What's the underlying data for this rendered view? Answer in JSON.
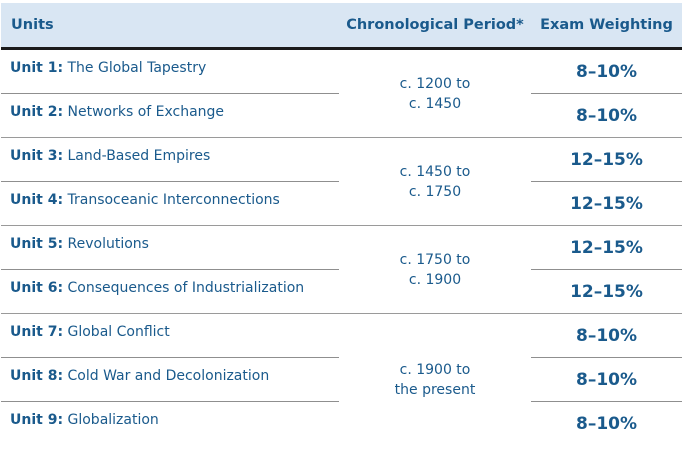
{
  "headers": {
    "units": "Units",
    "period": "Chronological Period*",
    "weighting": "Exam Weighting"
  },
  "rows": [
    {
      "num": "Unit 1:",
      "title": "The Global Tapestry",
      "weight": "8–10%"
    },
    {
      "num": "Unit 2:",
      "title": "Networks of Exchange",
      "weight": "8–10%"
    },
    {
      "num": "Unit 3:",
      "title": "Land-Based Empires",
      "weight": "12–15%"
    },
    {
      "num": "Unit 4:",
      "title": "Transoceanic Interconnections",
      "weight": "12–15%"
    },
    {
      "num": "Unit 5:",
      "title": "Revolutions",
      "weight": "12–15%"
    },
    {
      "num": "Unit 6:",
      "title": "Consequences of Industrialization",
      "weight": "12–15%"
    },
    {
      "num": "Unit 7:",
      "title": "Global Conflict",
      "weight": "8–10%"
    },
    {
      "num": "Unit 8:",
      "title": "Cold War and Decolonization",
      "weight": "8–10%"
    },
    {
      "num": "Unit 9:",
      "title": "Globalization",
      "weight": "8–10%"
    }
  ],
  "periods": [
    {
      "line1": "c. 1200 to",
      "line2": "c. 1450"
    },
    {
      "line1": "c. 1450 to",
      "line2": "c. 1750"
    },
    {
      "line1": "c. 1750 to",
      "line2": "c. 1900"
    },
    {
      "line1": "c. 1900 to",
      "line2": "the present"
    }
  ],
  "colors": {
    "header_bg": "#d9e6f3",
    "text_blue": "#1a5a8c",
    "rule": "#1b1b1b"
  }
}
